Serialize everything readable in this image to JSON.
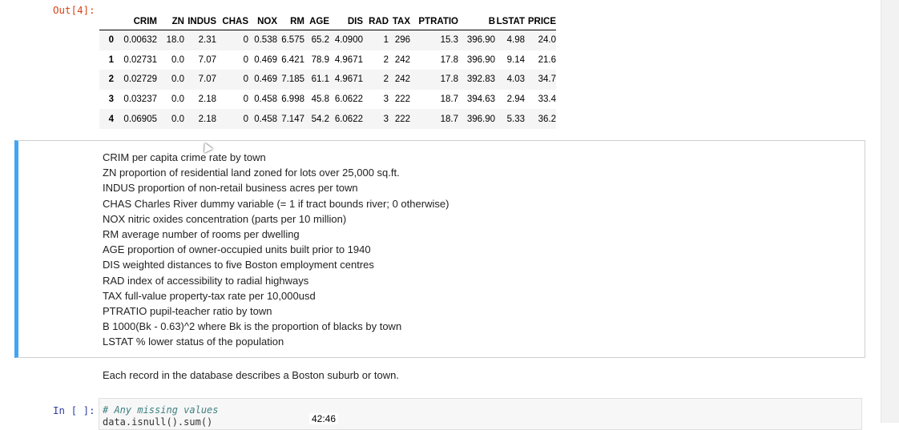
{
  "output_cell": {
    "prompt": "Out[4]:",
    "table": {
      "columns": [
        "",
        "CRIM",
        "ZN",
        "INDUS",
        "CHAS",
        "NOX",
        "RM",
        "AGE",
        "DIS",
        "RAD",
        "TAX",
        "PTRATIO",
        "B",
        "LSTAT",
        "PRICE"
      ],
      "rows": [
        [
          "0",
          "0.00632",
          "18.0",
          "2.31",
          "0",
          "0.538",
          "6.575",
          "65.2",
          "4.0900",
          "1",
          "296",
          "15.3",
          "396.90",
          "4.98",
          "24.0"
        ],
        [
          "1",
          "0.02731",
          "0.0",
          "7.07",
          "0",
          "0.469",
          "6.421",
          "78.9",
          "4.9671",
          "2",
          "242",
          "17.8",
          "396.90",
          "9.14",
          "21.6"
        ],
        [
          "2",
          "0.02729",
          "0.0",
          "7.07",
          "0",
          "0.469",
          "7.185",
          "61.1",
          "4.9671",
          "2",
          "242",
          "17.8",
          "392.83",
          "4.03",
          "34.7"
        ],
        [
          "3",
          "0.03237",
          "0.0",
          "2.18",
          "0",
          "0.458",
          "6.998",
          "45.8",
          "6.0622",
          "3",
          "222",
          "18.7",
          "394.63",
          "2.94",
          "33.4"
        ],
        [
          "4",
          "0.06905",
          "0.0",
          "2.18",
          "0",
          "0.458",
          "7.147",
          "54.2",
          "6.0622",
          "3",
          "222",
          "18.7",
          "396.90",
          "5.33",
          "36.2"
        ]
      ]
    }
  },
  "markdown_cell": {
    "accent_color": "#42a5f5",
    "lines": [
      "CRIM per capita crime rate by town",
      "ZN proportion of residential land zoned for lots over 25,000 sq.ft.",
      "INDUS proportion of non-retail business acres per town",
      "CHAS Charles River dummy variable (= 1 if tract bounds river; 0 otherwise)",
      "NOX nitric oxides concentration (parts per 10 million)",
      "RM average number of rooms per dwelling",
      "AGE proportion of owner-occupied units built prior to 1940",
      "DIS weighted distances to five Boston employment centres",
      "RAD index of accessibility to radial highways",
      "TAX full-value property-tax rate per 10,000usd",
      "PTRATIO pupil-teacher ratio by town",
      "B 1000(Bk - 0.63)^2 where Bk is the proportion of blacks by town",
      "LSTAT % lower status of the population"
    ]
  },
  "paragraph": "Each record in the database describes a Boston suburb or town.",
  "input_cell": {
    "prompt": "In [ ]:",
    "comment": "# Any missing values",
    "code_partial": "data.isnull().sum()"
  },
  "video_timestamp": "42:46"
}
